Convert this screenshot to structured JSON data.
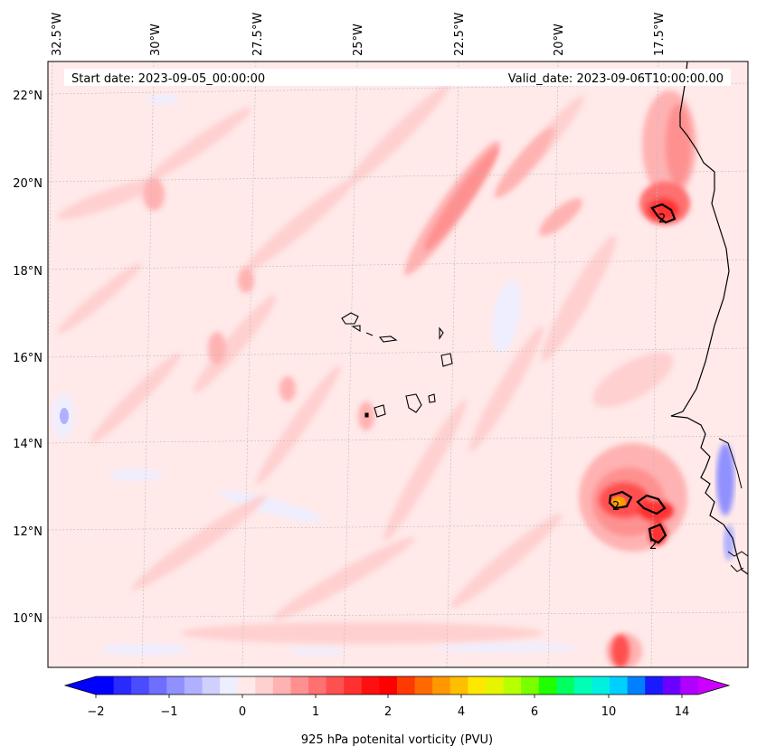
{
  "header": {
    "start_date": "Start date: 2023-09-05_00:00:00",
    "valid_date": "Valid_date: 2023-09-06T10:00:00.00"
  },
  "map": {
    "lon_labels": [
      "32.5°W",
      "30°W",
      "27.5°W",
      "25°W",
      "22.5°W",
      "20°W",
      "17.5°W"
    ],
    "lat_labels": [
      "22°N",
      "20°N",
      "18°N",
      "16°N",
      "14°N",
      "12°N",
      "10°N"
    ],
    "contour_labels": [
      "2",
      "2",
      "2"
    ],
    "colors": {
      "background": "#ffe9e9",
      "coast": "#000000",
      "grid": "#bbbbbb"
    }
  },
  "colorbar": {
    "label": "925 hPa potenital vorticity (PVU)",
    "ticks": [
      "−2",
      "−1",
      "0",
      "1",
      "2",
      "4",
      "6",
      "10",
      "14"
    ],
    "colors": [
      "#0000ff",
      "#2a2aff",
      "#4c4cff",
      "#6e6eff",
      "#9090ff",
      "#b0b0ff",
      "#d0d0ff",
      "#eeeeff",
      "#ffe9e9",
      "#ffd0d0",
      "#ffb2b2",
      "#ff9090",
      "#ff7070",
      "#ff5050",
      "#ff3030",
      "#ff1010",
      "#ff0000",
      "#ff3a00",
      "#ff6a00",
      "#ff9800",
      "#ffbe00",
      "#ffe800",
      "#e6f400",
      "#b8ff00",
      "#7aff00",
      "#20ff00",
      "#00ff60",
      "#00ffb4",
      "#00f0e0",
      "#00d0ff",
      "#0080ff",
      "#1a1aff",
      "#6a00ff",
      "#b000ff"
    ],
    "end_colors": {
      "low": "#0000ff",
      "high": "#cc00ff"
    }
  }
}
